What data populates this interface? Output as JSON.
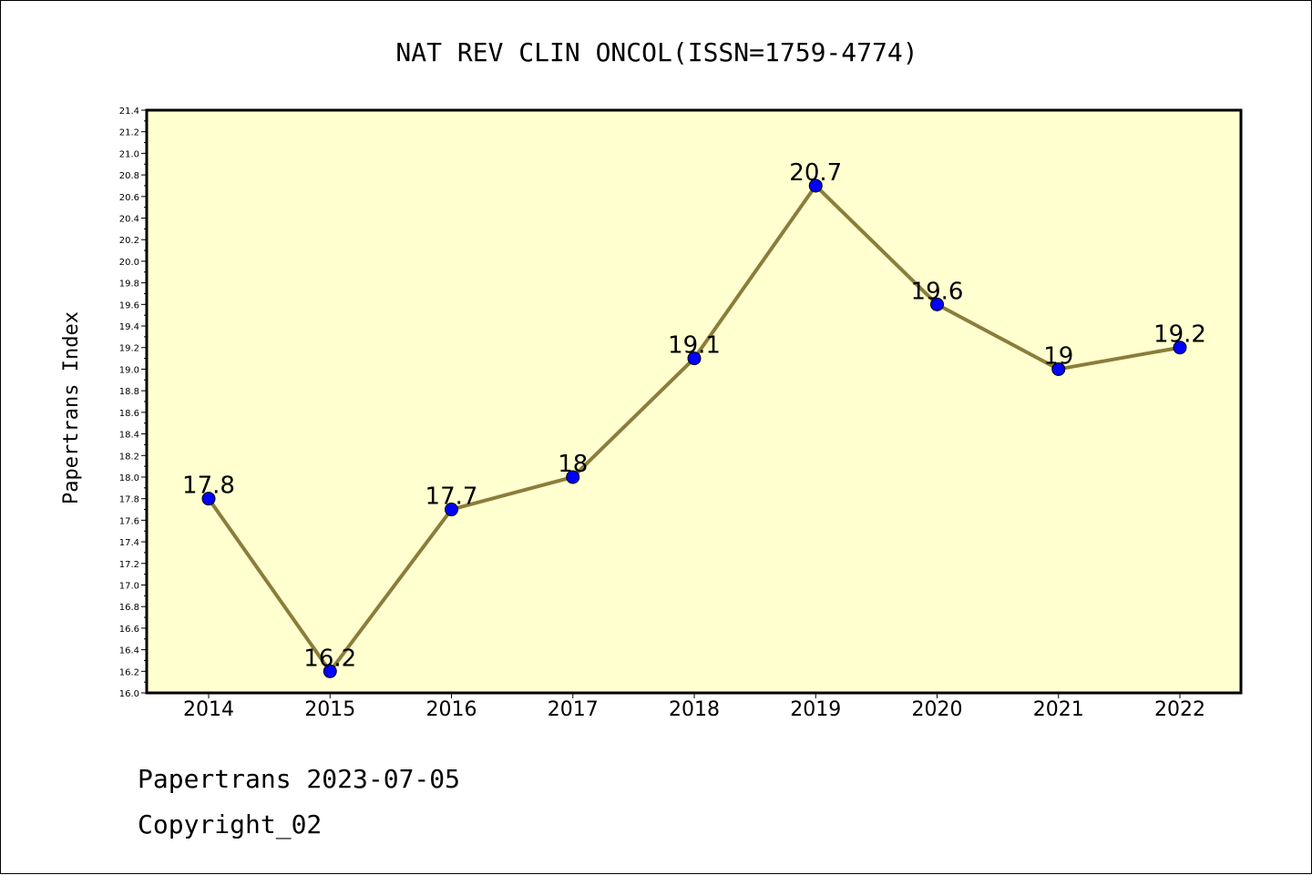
{
  "chart_data": {
    "type": "line",
    "title": "NAT REV CLIN ONCOL(ISSN=1759-4774)",
    "ylabel": "Papertrans Index",
    "xlabel": "",
    "categories": [
      "2014",
      "2015",
      "2016",
      "2017",
      "2018",
      "2019",
      "2020",
      "2021",
      "2022"
    ],
    "series": [
      {
        "values": [
          17.8,
          16.2,
          17.7,
          18.0,
          19.1,
          20.7,
          19.6,
          19.0,
          19.2
        ]
      }
    ],
    "data_labels": [
      "17.8",
      "16.2",
      "17.7",
      "18",
      "19.1",
      "20.7",
      "19.6",
      "19",
      "19.2"
    ],
    "ylim": [
      16.0,
      21.4
    ],
    "ytick_step": 0.2,
    "grid": false,
    "colors": {
      "plot_background": "#ffffd0",
      "line": "#8b7d3a",
      "marker": "#0000ff"
    }
  },
  "footer": {
    "date_line": "Papertrans 2023-07-05",
    "copyright": "Copyright_02"
  }
}
